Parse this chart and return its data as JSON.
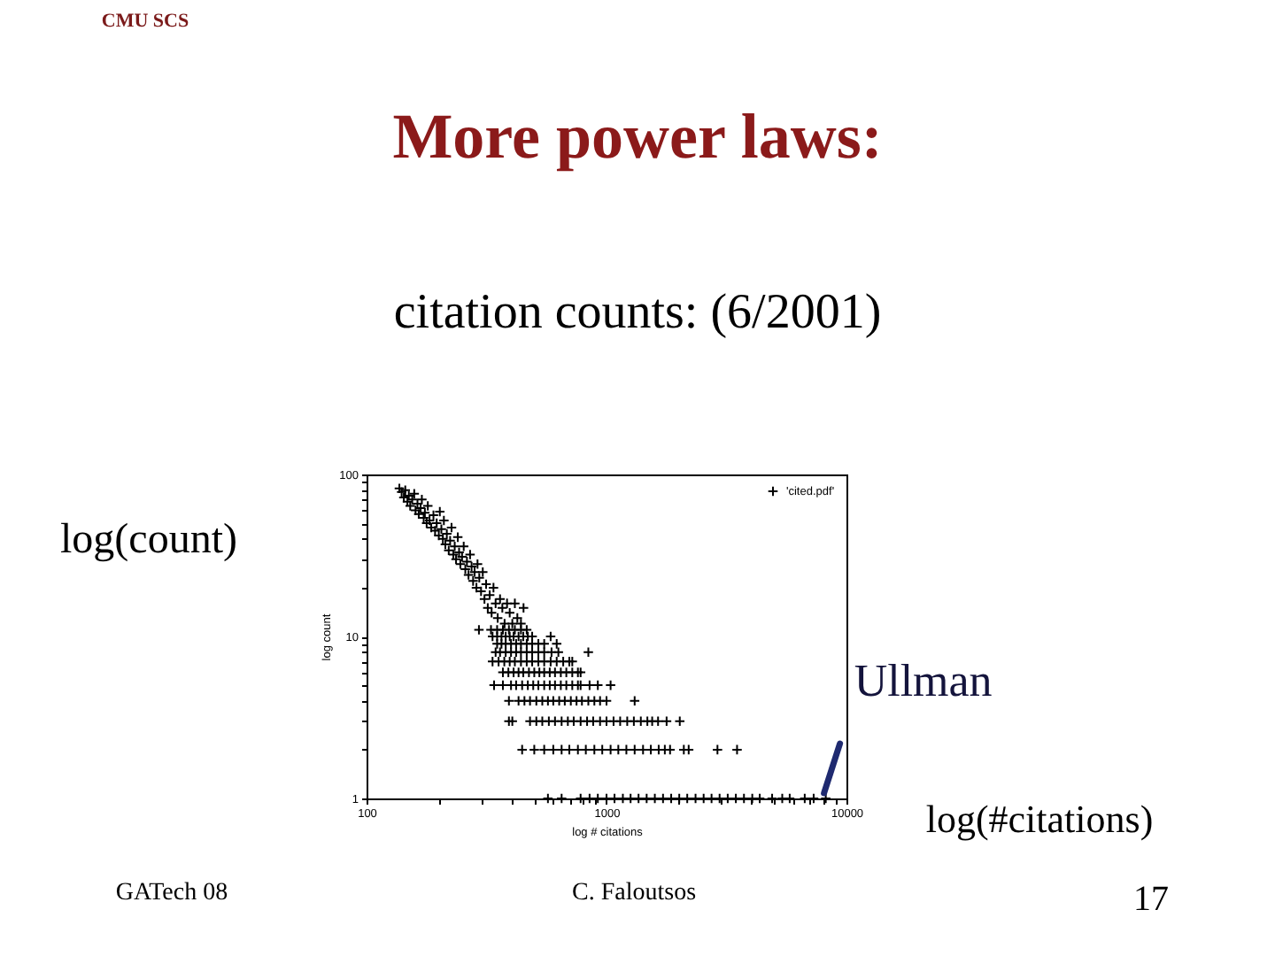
{
  "chart_data": {
    "type": "scatter",
    "title": "More power laws:",
    "subtitle": "citation counts: (6/2001)",
    "xlabel": "log # citations",
    "ylabel": "log count",
    "log": "xy",
    "xlim": [
      100,
      10000
    ],
    "ylim": [
      1,
      100
    ],
    "xticks": [
      100,
      {
        "value": 200,
        "label": null
      },
      {
        "value": 300,
        "label": null
      },
      {
        "value": 400,
        "label": null
      },
      {
        "value": 500,
        "label": null
      },
      {
        "value": 600,
        "label": null
      },
      {
        "value": 700,
        "label": null
      },
      {
        "value": 800,
        "label": null
      },
      {
        "value": 900,
        "label": null
      },
      1000,
      {
        "value": 2000,
        "label": null
      },
      {
        "value": 3000,
        "label": null
      },
      {
        "value": 4000,
        "label": null
      },
      {
        "value": 5000,
        "label": null
      },
      {
        "value": 6000,
        "label": null
      },
      {
        "value": 7000,
        "label": null
      },
      {
        "value": 8000,
        "label": null
      },
      {
        "value": 9000,
        "label": null
      },
      10000
    ],
    "yticks": [
      1,
      {
        "value": 2,
        "label": null
      },
      {
        "value": 3,
        "label": null
      },
      {
        "value": 4,
        "label": null
      },
      {
        "value": 5,
        "label": null
      },
      {
        "value": 6,
        "label": null
      },
      {
        "value": 7,
        "label": null
      },
      {
        "value": 8,
        "label": null
      },
      {
        "value": 9,
        "label": null
      },
      10,
      {
        "value": 20,
        "label": null
      },
      {
        "value": 30,
        "label": null
      },
      {
        "value": 40,
        "label": null
      },
      {
        "value": 50,
        "label": null
      },
      {
        "value": 60,
        "label": null
      },
      {
        "value": 70,
        "label": null
      },
      {
        "value": 80,
        "label": null
      },
      {
        "value": 90,
        "label": null
      },
      100
    ],
    "legend": "top right",
    "marker": "cross",
    "series": [
      {
        "name": "'cited.pdf'",
        "color": "#000000",
        "x": [
          137,
          140,
          143,
          145,
          148,
          150,
          152,
          155,
          158,
          160,
          163,
          165,
          168,
          170,
          173,
          175,
          178,
          180,
          183,
          186,
          190,
          193,
          196,
          200,
          202,
          205,
          208,
          210,
          213,
          216,
          220,
          223,
          226,
          230,
          233,
          236,
          240,
          243,
          246,
          250,
          254,
          258,
          262,
          266,
          270,
          274,
          278,
          282,
          287,
          290,
          294,
          295,
          300,
          305,
          310,
          315,
          320,
          326,
          332,
          338,
          345,
          352,
          360,
          368,
          376,
          385,
          395,
          405,
          415,
          425,
          440,
          451,
          330,
          350,
          370,
          392,
          415,
          440,
          465,
          335,
          350,
          365,
          380,
          395,
          410,
          430,
          450,
          470,
          490,
          585,
          350,
          365,
          380,
          400,
          420,
          440,
          465,
          490,
          520,
          550,
          620,
          345,
          360,
          380,
          400,
          420,
          440,
          465,
          490,
          520,
          550,
          590,
          630,
          840,
          335,
          355,
          375,
          395,
          415,
          440,
          465,
          490,
          520,
          550,
          585,
          620,
          660,
          700,
          720,
          370,
          390,
          410,
          430,
          450,
          475,
          500,
          525,
          550,
          580,
          610,
          645,
          680,
          720,
          760,
          780,
          340,
          370,
          400,
          420,
          445,
          470,
          495,
          520,
          550,
          580,
          610,
          645,
          680,
          720,
          760,
          780,
          850,
          920,
          1040,
          392,
          430,
          455,
          480,
          510,
          540,
          570,
          600,
          635,
          670,
          710,
          750,
          790,
          840,
          890,
          940,
          1000,
          1310,
          392,
          405,
          480,
          510,
          540,
          575,
          610,
          650,
          690,
          730,
          780,
          830,
          880,
          940,
          1000,
          1070,
          1140,
          1220,
          1300,
          1390,
          1480,
          1550,
          1640,
          1780,
          2020,
          445,
          500,
          550,
          600,
          650,
          700,
          760,
          820,
          890,
          960,
          1040,
          1120,
          1210,
          1310,
          1420,
          1530,
          1650,
          1750,
          1840,
          2100,
          2200,
          2900,
          3500,
          570,
          650,
          780,
          850,
          920,
          1000,
          1080,
          1170,
          1260,
          1360,
          1470,
          1590,
          1720,
          1860,
          2010,
          2170,
          2350,
          2540,
          2740,
          2960,
          3200,
          3460,
          3740,
          4050,
          4350,
          4900,
          5400,
          5800,
          6700,
          7300,
          8200
        ],
        "values": [
          82,
          78,
          72,
          80,
          68,
          74,
          64,
          70,
          76,
          60,
          66,
          57,
          62,
          70,
          54,
          58,
          50,
          64,
          52,
          47,
          56,
          45,
          50,
          42,
          59,
          46,
          40,
          52,
          37,
          43,
          34,
          39,
          47,
          32,
          36,
          30,
          41,
          33,
          28,
          31,
          36,
          26,
          29,
          24,
          32,
          27,
          22,
          25,
          20,
          28,
          11,
          23,
          19,
          25,
          17,
          21,
          15,
          18,
          14,
          20,
          16,
          13,
          17,
          15,
          12,
          16,
          14,
          12,
          16,
          13,
          12,
          15,
          11,
          11,
          11,
          11,
          11,
          11,
          11,
          10,
          10,
          10,
          10,
          10,
          10,
          10,
          10,
          10,
          10,
          10,
          9,
          9,
          9,
          9,
          9,
          9,
          9,
          9,
          9,
          9,
          9,
          8,
          8,
          8,
          8,
          8,
          8,
          8,
          8,
          8,
          8,
          8,
          8,
          8,
          7,
          7,
          7,
          7,
          7,
          7,
          7,
          7,
          7,
          7,
          7,
          7,
          7,
          7,
          7,
          6,
          6,
          6,
          6,
          6,
          6,
          6,
          6,
          6,
          6,
          6,
          6,
          6,
          6,
          6,
          6,
          5,
          5,
          5,
          5,
          5,
          5,
          5,
          5,
          5,
          5,
          5,
          5,
          5,
          5,
          5,
          5,
          5,
          5,
          5,
          4,
          4,
          4,
          4,
          4,
          4,
          4,
          4,
          4,
          4,
          4,
          4,
          4,
          4,
          4,
          4,
          4,
          4,
          3,
          3,
          3,
          3,
          3,
          3,
          3,
          3,
          3,
          3,
          3,
          3,
          3,
          3,
          3,
          3,
          3,
          3,
          3,
          3,
          3,
          3,
          3,
          3,
          3,
          2,
          2,
          2,
          2,
          2,
          2,
          2,
          2,
          2,
          2,
          2,
          2,
          2,
          2,
          2,
          2,
          2,
          2,
          2,
          2,
          2,
          2,
          2,
          1,
          1,
          1,
          1,
          1,
          1,
          1,
          1,
          1,
          1,
          1,
          1,
          1,
          1,
          1,
          1,
          1,
          1,
          1,
          1,
          1,
          1,
          1,
          1,
          1,
          1,
          1,
          1,
          1,
          1,
          1
        ]
      }
    ],
    "annotations": [
      "CMU SCS",
      "log(count)",
      "log(#citations)",
      "GATech 08",
      "C. Faloutsos",
      "17",
      {
        "text": "Ullman",
        "x": 8200,
        "y": 1
      }
    ]
  }
}
